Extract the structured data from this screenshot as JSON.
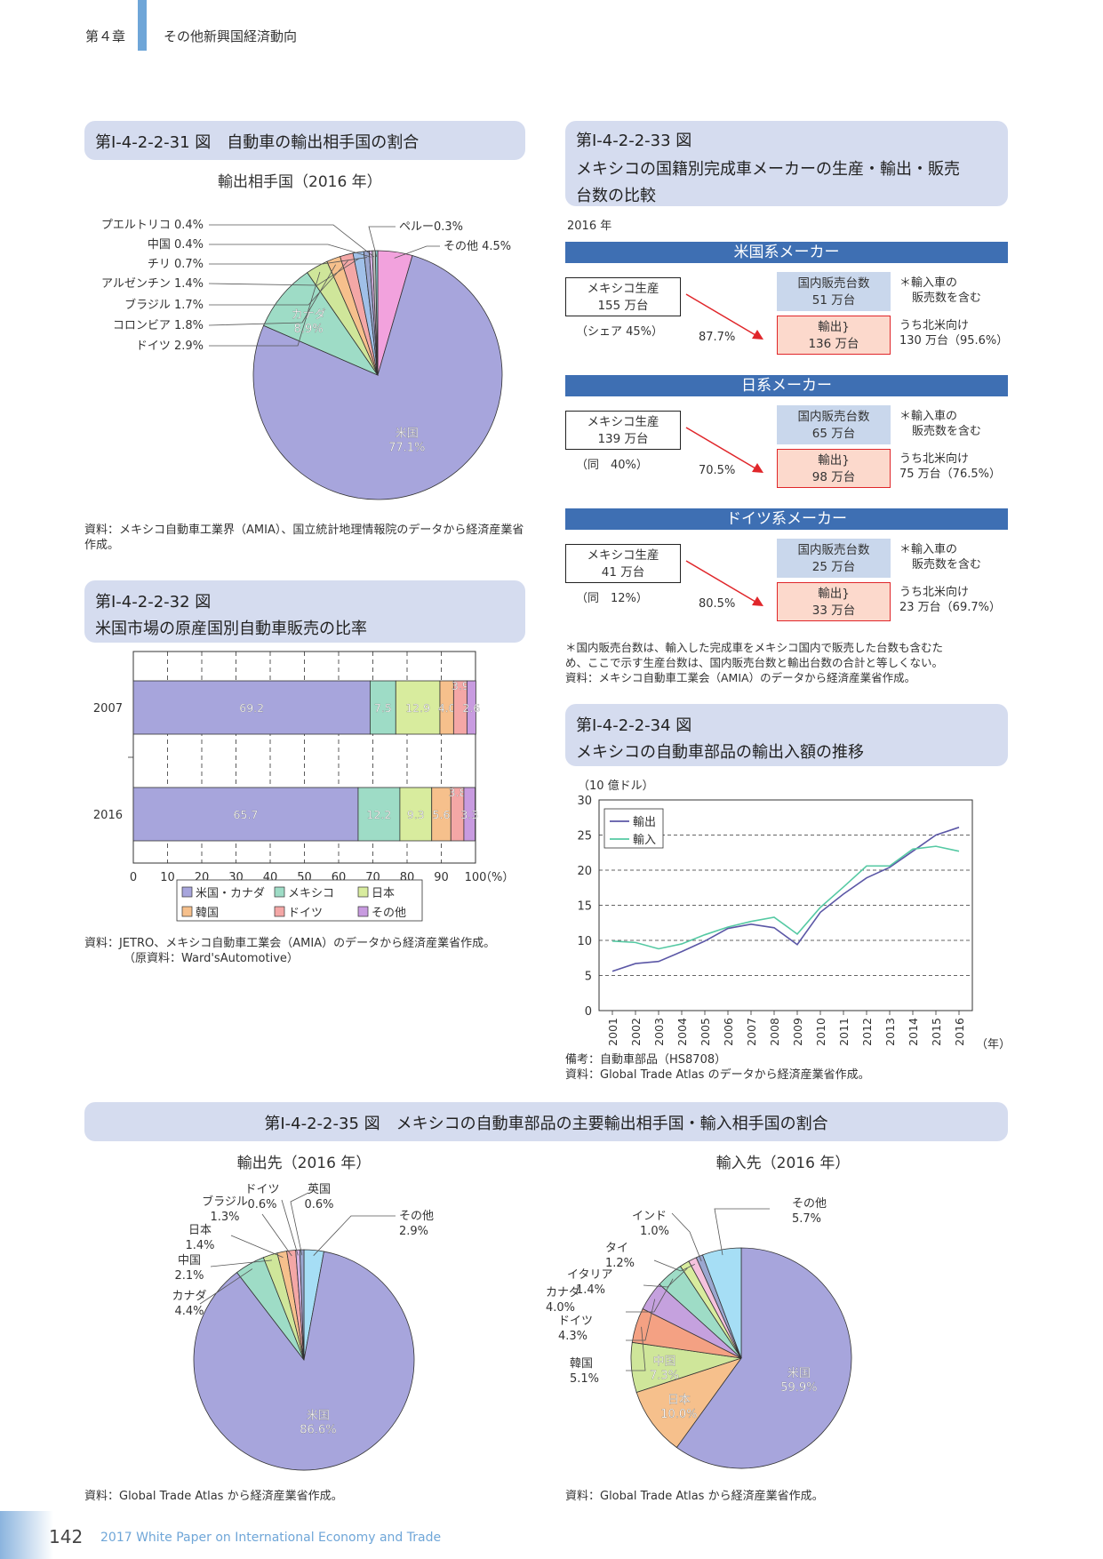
{
  "header": {
    "chapter": "第４章",
    "title": "その他新興国経済動向"
  },
  "fig31": {
    "title": "第Ⅰ-4-2-2-31 図　自動車の輸出相手国の割合",
    "subtitle": "輸出相手国（2016 年）",
    "source": "資料：メキシコ自動車工業界（AMIA）、国立統計地理情報院のデータから経済産業省作成。"
  },
  "fig32": {
    "title_line1": "第Ⅰ-4-2-2-32 図",
    "title_line2": "米国市場の原産国別自動車販売の比率",
    "source_line1": "資料：JETRO、メキシコ自動車工業会（AMIA）のデータから経済産業省作成。",
    "source_line2": "（原資料：Ward'sAutomotive）"
  },
  "fig33": {
    "title_line1": "第Ⅰ-4-2-2-33 図",
    "title_line2": "メキシコの国籍別完成車メーカーの生産・輸出・販売",
    "title_line3": "台数の比較",
    "year": "2016 年",
    "makers": [
      {
        "name": "米国系メーカー",
        "prod_label": "メキシコ生産",
        "prod_value": "155 万台",
        "share": "（シェア 45%）",
        "export_pct": "87.7%",
        "domestic_label": "国内販売台数",
        "domestic_value": "51 万台",
        "note1": "＊輸入車の",
        "note2": "販売数を含む",
        "export_label": "輸出",
        "export_value": "136 万台",
        "na1": "うち北米向け",
        "na2": "130 万台（95.6%）"
      },
      {
        "name": "日系メーカー",
        "prod_label": "メキシコ生産",
        "prod_value": "139 万台",
        "share": "（同　40%）",
        "export_pct": "70.5%",
        "domestic_label": "国内販売台数",
        "domestic_value": "65 万台",
        "note1": "＊輸入車の",
        "note2": "販売数を含む",
        "export_label": "輸出",
        "export_value": "98 万台",
        "na1": "うち北米向け",
        "na2": "75 万台（76.5%）"
      },
      {
        "name": "ドイツ系メーカー",
        "prod_label": "メキシコ生産",
        "prod_value": "41 万台",
        "share": "（同　12%）",
        "export_pct": "80.5%",
        "domestic_label": "国内販売台数",
        "domestic_value": "25 万台",
        "note1": "＊輸入車の",
        "note2": "販売数を含む",
        "export_label": "輸出",
        "export_value": "33 万台",
        "na1": "うち北米向け",
        "na2": "23 万台（69.7%）"
      }
    ],
    "footnote1": "＊国内販売台数は、輸入した完成車をメキシコ国内で販売した台数も含むた",
    "footnote2": "め、ここで示す生産台数は、国内販売台数と輸出台数の合計と等しくない。",
    "source": "資料：メキシコ自動車工業会（AMIA）のデータから経済産業省作成。"
  },
  "fig34": {
    "title_line1": "第Ⅰ-4-2-2-34 図",
    "title_line2": "メキシコの自動車部品の輸出入額の推移",
    "note": "備考：自動車部品（HS8708）",
    "source": "資料：Global Trade Atlas のデータから経済産業省作成。"
  },
  "fig35": {
    "title": "第Ⅰ-4-2-2-35 図　メキシコの自動車部品の主要輸出相手国・輸入相手国の割合",
    "source_left": "資料：Global Trade Atlas から経済産業省作成。",
    "source_right": "資料：Global Trade Atlas から経済産業省作成。"
  },
  "footer": {
    "page": "142",
    "text": "2017 White Paper on International Economy and Trade"
  },
  "colors": {
    "usa": "#a7a5dc",
    "canada": "#9edcc6",
    "germany": "#cfe69a",
    "brazil": "#f6c08c",
    "colombia": "#f4a7a6",
    "argentina": "#a0c0e8",
    "chile": "#9ba7d0",
    "china": "#d6b3e4",
    "pr": "#c0c0c0",
    "peru": "#86cfcf",
    "other": "#f2a2dd",
    "export_line": "#5b57a6",
    "import_line": "#55c9a3"
  },
  "chart_data": [
    {
      "type": "pie",
      "title": "輸出相手国（2016 年）",
      "labels": [
        "米国",
        "カナダ",
        "ドイツ",
        "コロンビア",
        "ブラジル",
        "アルゼンチン",
        "チリ",
        "中国",
        "プエルトリコ",
        "ペルー",
        "その他"
      ],
      "display": [
        "77.1%",
        "8.9%",
        "2.9%",
        "1.8%",
        "1.7%",
        "1.4%",
        "0.7%",
        "0.4%",
        "0.4%",
        "0.3%",
        "4.5%"
      ],
      "values": [
        77.1,
        8.9,
        2.9,
        1.8,
        1.7,
        1.4,
        0.7,
        0.4,
        0.4,
        0.3,
        4.5
      ],
      "colors": [
        "#a7a5dc",
        "#9edcc6",
        "#cfe69a",
        "#f6c08c",
        "#f4a7a6",
        "#a0c0e8",
        "#9ba7d0",
        "#d6b3e4",
        "#c0c0c0",
        "#86cfcf",
        "#f2a2dd"
      ]
    },
    {
      "type": "bar",
      "stacked": true,
      "horizontal": true,
      "categories": [
        "2007",
        "2016"
      ],
      "xlim": [
        0,
        100
      ],
      "xunit": "（%）",
      "xticks": [
        0,
        10,
        20,
        30,
        40,
        50,
        60,
        70,
        80,
        90,
        100
      ],
      "legend": "bottom",
      "series": [
        {
          "name": "米国・カナダ",
          "values": [
            69.2,
            65.7
          ],
          "color": "#a7a5dc"
        },
        {
          "name": "メキシコ",
          "values": [
            7.5,
            12.2
          ],
          "color": "#9edcc6"
        },
        {
          "name": "日本",
          "values": [
            12.9,
            9.3
          ],
          "color": "#d8ec9e"
        },
        {
          "name": "韓国",
          "values": [
            4.0,
            5.6
          ],
          "color": "#f6c08c"
        },
        {
          "name": "ドイツ",
          "values": [
            3.9,
            3.8
          ],
          "color": "#f4a7a6"
        },
        {
          "name": "その他",
          "values": [
            2.6,
            3.3
          ],
          "color": "#c89be0"
        }
      ]
    },
    {
      "type": "line",
      "ylabel": "（10 億ドル）",
      "xunit": "（年）",
      "ylim": [
        0,
        30
      ],
      "yticks": [
        0,
        5,
        10,
        15,
        20,
        25,
        30
      ],
      "x": [
        "2001",
        "2002",
        "2003",
        "2004",
        "2005",
        "2006",
        "2007",
        "2008",
        "2009",
        "2010",
        "2011",
        "2012",
        "2013",
        "2014",
        "2015",
        "2016"
      ],
      "legend": "top-left",
      "series": [
        {
          "name": "輸出",
          "values": [
            5.6,
            6.7,
            7.0,
            8.4,
            9.9,
            11.7,
            12.3,
            11.8,
            9.4,
            14.0,
            16.6,
            18.9,
            20.4,
            22.7,
            25.0,
            26.1
          ],
          "color": "#5b57a6"
        },
        {
          "name": "輸入",
          "values": [
            9.9,
            9.7,
            8.8,
            9.5,
            10.8,
            11.9,
            12.7,
            13.3,
            10.9,
            14.7,
            17.6,
            20.6,
            20.6,
            23.0,
            23.4,
            22.7
          ],
          "color": "#55c9a3"
        }
      ]
    },
    {
      "type": "pie",
      "title": "輸出先（2016 年）",
      "labels": [
        "米国",
        "カナダ",
        "中国",
        "日本",
        "ブラジル",
        "ドイツ",
        "英国",
        "その他"
      ],
      "display": [
        "86.6%",
        "4.4%",
        "2.1%",
        "1.4%",
        "1.3%",
        "0.6%",
        "0.6%",
        "2.9%"
      ],
      "values": [
        86.6,
        4.4,
        2.1,
        1.4,
        1.3,
        0.6,
        0.6,
        2.9
      ],
      "colors": [
        "#a7a5dc",
        "#9edcc6",
        "#cfe69a",
        "#f6c08c",
        "#f4a7a6",
        "#d6b3e4",
        "#9ba7d0",
        "#a6def5"
      ]
    },
    {
      "type": "pie",
      "title": "輸入先（2016 年）",
      "labels": [
        "米国",
        "日本",
        "中国",
        "韓国",
        "ドイツ",
        "カナダ",
        "イタリア",
        "タイ",
        "インド",
        "その他"
      ],
      "display": [
        "59.9%",
        "10.0%",
        "7.3%",
        "5.1%",
        "4.3%",
        "4.0%",
        "1.4%",
        "1.2%",
        "1.0%",
        "5.7%"
      ],
      "values": [
        59.9,
        10.0,
        7.3,
        5.1,
        4.3,
        4.0,
        1.4,
        1.2,
        1.0,
        5.7
      ],
      "colors": [
        "#a7a5dc",
        "#f6c08c",
        "#cfe69a",
        "#f4a183",
        "#c5a1de",
        "#9edcc6",
        "#d8ec9e",
        "#f5c2dd",
        "#9ba7d0",
        "#a6def5"
      ]
    }
  ]
}
